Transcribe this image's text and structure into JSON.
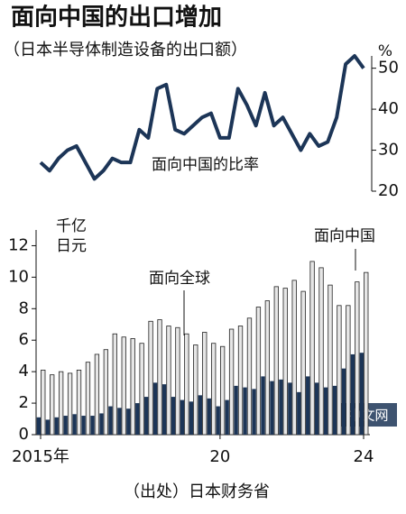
{
  "title": "面向中国的出口增加",
  "subtitle": "（日本半导体制造设备的出口额）",
  "source": "（出处）日本财务省",
  "watermark": "中文网",
  "chart_data": [
    {
      "type": "line",
      "annotation": "面向中国的比率",
      "unit": "%",
      "series": [
        {
          "name": "面向中国的比率",
          "color": "#1c3557",
          "values": [
            27,
            25,
            28,
            30,
            31,
            27,
            23,
            25,
            28,
            27,
            27,
            35,
            33,
            45,
            46,
            35,
            34,
            36,
            38,
            39,
            33,
            33,
            45,
            41,
            36,
            44,
            36,
            38,
            34,
            30,
            34,
            31,
            32,
            38,
            51,
            53,
            50
          ]
        }
      ],
      "y2lim": [
        20,
        53
      ],
      "y2ticks": [
        20,
        30,
        40,
        50
      ]
    },
    {
      "type": "bar",
      "ylabel": "千亿\n日元",
      "annotations": [
        "面向全球",
        "面向中国"
      ],
      "categories": [
        "2015年",
        null,
        null,
        null,
        null,
        null,
        null,
        null,
        null,
        null,
        null,
        null,
        null,
        null,
        null,
        null,
        null,
        null,
        null,
        null,
        "20",
        null,
        null,
        null,
        null,
        null,
        null,
        null,
        null,
        null,
        null,
        null,
        null,
        null,
        null,
        null,
        "24"
      ],
      "series": [
        {
          "name": "面向全球",
          "color": "#e6e6e6",
          "values": [
            4.1,
            3.8,
            4.0,
            3.9,
            4.1,
            4.6,
            5.1,
            5.4,
            6.4,
            6.2,
            6.1,
            5.8,
            7.2,
            7.3,
            6.9,
            6.8,
            6.4,
            5.7,
            6.5,
            5.8,
            5.6,
            6.7,
            6.9,
            7.4,
            8.1,
            8.5,
            9.4,
            9.3,
            9.8,
            9.1,
            11.0,
            10.6,
            9.5,
            8.2,
            8.2,
            9.7,
            10.3
          ]
        },
        {
          "name": "面向中国",
          "color": "#1c3557",
          "values": [
            1.1,
            0.95,
            1.1,
            1.2,
            1.3,
            1.2,
            1.2,
            1.35,
            1.8,
            1.7,
            1.65,
            2.0,
            2.4,
            3.3,
            3.2,
            2.4,
            2.2,
            2.1,
            2.5,
            2.3,
            1.8,
            2.2,
            3.1,
            3.0,
            2.9,
            3.7,
            3.4,
            3.5,
            3.3,
            2.7,
            3.7,
            3.3,
            3.0,
            3.1,
            4.2,
            5.1,
            5.2
          ]
        }
      ],
      "ylim": [
        0,
        13
      ],
      "yticks": [
        0,
        2,
        4,
        6,
        8,
        10,
        12
      ]
    }
  ]
}
